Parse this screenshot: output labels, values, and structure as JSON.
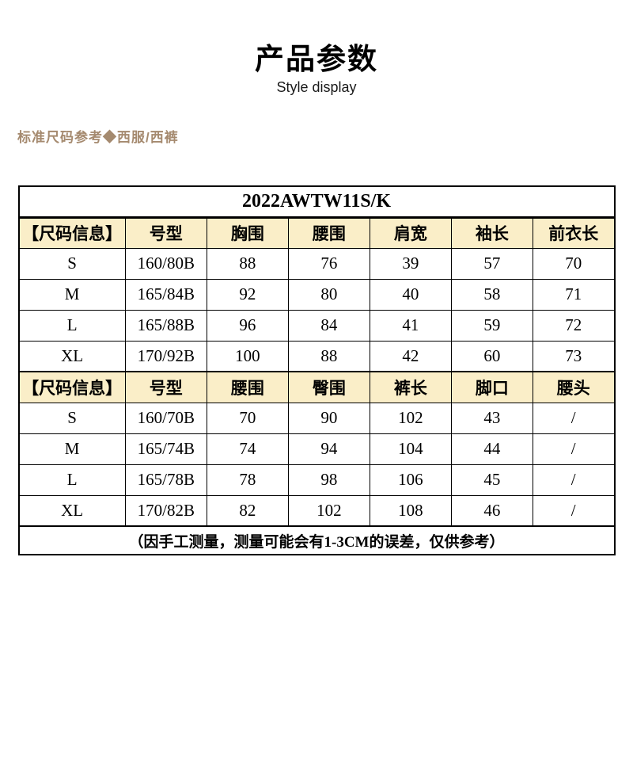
{
  "header": {
    "title": "产品参数",
    "subtitle": "Style display",
    "section_label": "标准尺码参考◆西服/西裤"
  },
  "colors": {
    "accent_brown": "#a58a6f",
    "table_header_bg": "#faeec8",
    "border": "#000000"
  },
  "chart_data": {
    "type": "table",
    "title": "2022AWTW11S/K",
    "sections": [
      {
        "headers": [
          "【尺码信息】",
          "号型",
          "胸围",
          "腰围",
          "肩宽",
          "袖长",
          "前衣长"
        ],
        "rows": [
          [
            "S",
            "160/80B",
            "88",
            "76",
            "39",
            "57",
            "70"
          ],
          [
            "M",
            "165/84B",
            "92",
            "80",
            "40",
            "58",
            "71"
          ],
          [
            "L",
            "165/88B",
            "96",
            "84",
            "41",
            "59",
            "72"
          ],
          [
            "XL",
            "170/92B",
            "100",
            "88",
            "42",
            "60",
            "73"
          ]
        ]
      },
      {
        "headers": [
          "【尺码信息】",
          "号型",
          "腰围",
          "臀围",
          "裤长",
          "脚口",
          "腰头"
        ],
        "rows": [
          [
            "S",
            "160/70B",
            "70",
            "90",
            "102",
            "43",
            "/"
          ],
          [
            "M",
            "165/74B",
            "74",
            "94",
            "104",
            "44",
            "/"
          ],
          [
            "L",
            "165/78B",
            "78",
            "98",
            "106",
            "45",
            "/"
          ],
          [
            "XL",
            "170/82B",
            "82",
            "102",
            "108",
            "46",
            "/"
          ]
        ]
      }
    ],
    "footnote": "（因手工测量，测量可能会有1-3CM的误差，仅供参考）"
  }
}
